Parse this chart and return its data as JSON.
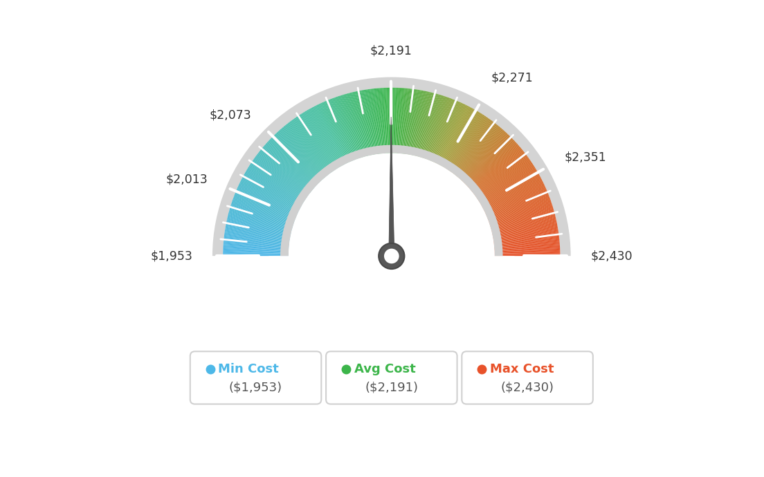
{
  "min_val": 1953,
  "max_val": 2430,
  "avg_val": 2191,
  "tick_labels": [
    "$1,953",
    "$2,013",
    "$2,073",
    "$2,191",
    "$2,271",
    "$2,351",
    "$2,430"
  ],
  "tick_values": [
    1953,
    2013,
    2073,
    2191,
    2271,
    2351,
    2430
  ],
  "legend": [
    {
      "label": "Min Cost",
      "value": "($1,953)",
      "color": "#4db8e8"
    },
    {
      "label": "Avg Cost",
      "value": "($2,191)",
      "color": "#3cb54a"
    },
    {
      "label": "Max Cost",
      "value": "($2,430)",
      "color": "#e8522a"
    }
  ],
  "bg_color": "#ffffff",
  "needle_color": "#555555",
  "rim_color_outer": "#d0d0d0",
  "rim_color_inner": "#c8c8c8",
  "color_stops": [
    [
      0.0,
      [
        77,
        182,
        232
      ]
    ],
    [
      0.35,
      [
        72,
        192,
        160
      ]
    ],
    [
      0.5,
      [
        60,
        181,
        74
      ]
    ],
    [
      0.65,
      [
        160,
        160,
        60
      ]
    ],
    [
      0.78,
      [
        210,
        110,
        40
      ]
    ],
    [
      1.0,
      [
        230,
        80,
        40
      ]
    ]
  ]
}
